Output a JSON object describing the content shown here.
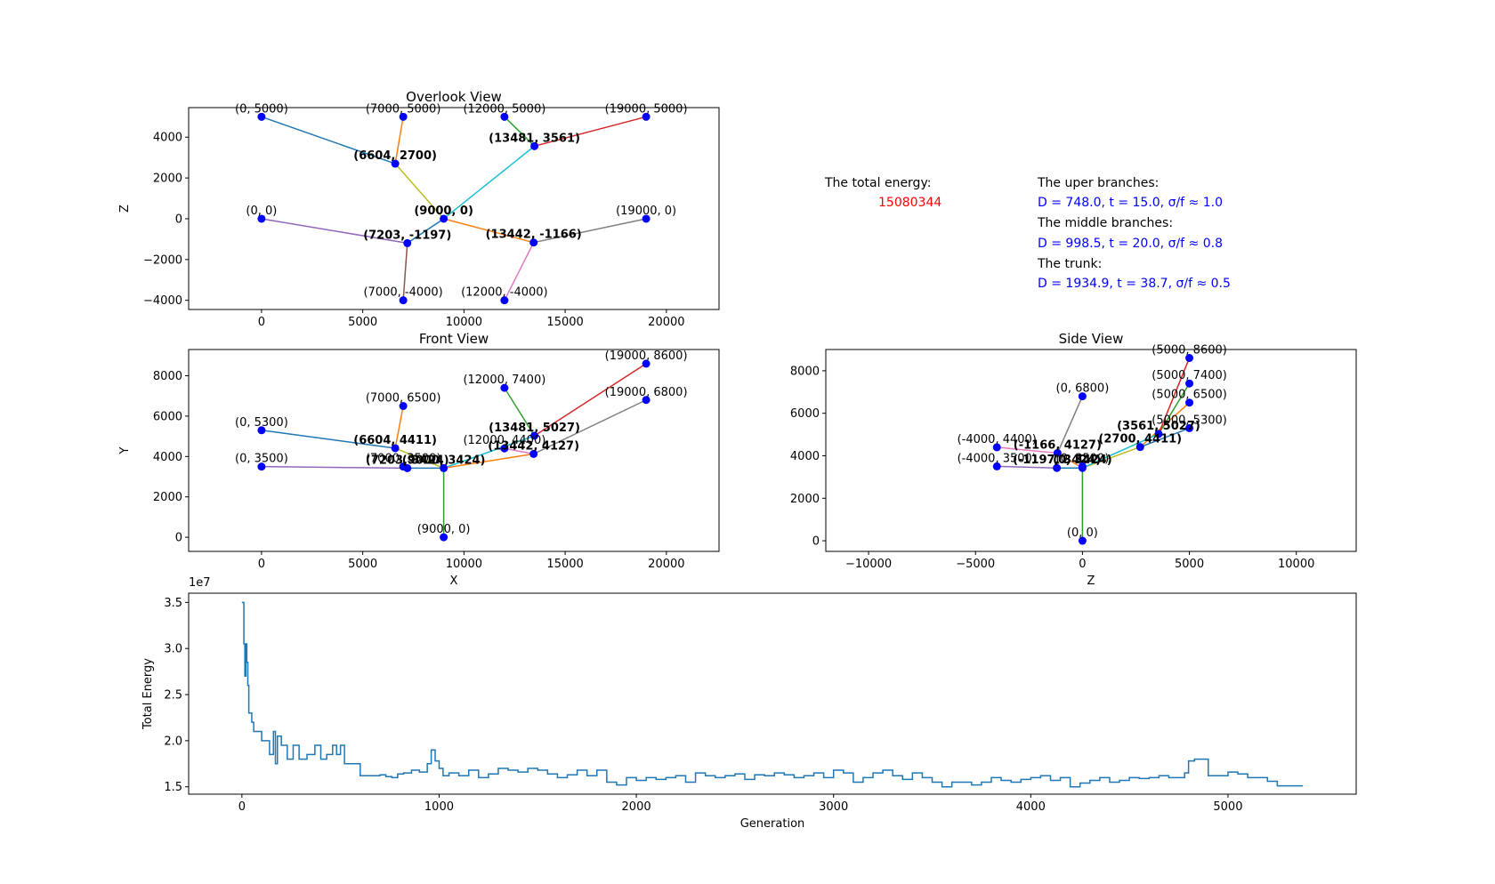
{
  "info": {
    "energy_label": "The total energy:",
    "energy_value": "15080344",
    "upper_label": "The uper branches:",
    "upper_value": "D = 748.0, t = 15.0, σ/f ≈ 1.0",
    "middle_label": "The middle branches:",
    "middle_value": "D = 998.5, t = 20.0, σ/f ≈ 0.8",
    "trunk_label": "The trunk:",
    "trunk_value": "D = 1934.9, t = 38.7, σ/f ≈ 0.5",
    "energy_color": "#ff0000",
    "value_color": "#0000ff"
  },
  "chart_data": [
    {
      "type": "line",
      "title": "Overlook View",
      "xlabel": "",
      "ylabel": "Z",
      "xlim": [
        -3600,
        22600
      ],
      "ylim": [
        -4450,
        5450
      ],
      "xticks": [
        0,
        5000,
        10000,
        15000,
        20000
      ],
      "yticks": [
        -4000,
        -2000,
        0,
        2000,
        4000
      ],
      "xtick_labels": [
        "0",
        "5000",
        "10000",
        "15000",
        "20000"
      ],
      "ytick_labels": [
        "−4000",
        "−2000",
        "0",
        "2000",
        "4000"
      ],
      "segments": [
        {
          "from": [
            0,
            5000
          ],
          "to": [
            6604,
            2700
          ],
          "color": "#1f77b4"
        },
        {
          "from": [
            7000,
            5000
          ],
          "to": [
            6604,
            2700
          ],
          "color": "#ff7f0e"
        },
        {
          "from": [
            12000,
            5000
          ],
          "to": [
            13481,
            3561
          ],
          "color": "#2ca02c"
        },
        {
          "from": [
            19000,
            5000
          ],
          "to": [
            13481,
            3561
          ],
          "color": "#d62728"
        },
        {
          "from": [
            6604,
            2700
          ],
          "to": [
            9000,
            0
          ],
          "color": "#bcbd22"
        },
        {
          "from": [
            13481,
            3561
          ],
          "to": [
            9000,
            0
          ],
          "color": "#17becf"
        },
        {
          "from": [
            0,
            0
          ],
          "to": [
            7203,
            -1197
          ],
          "color": "#9467bd"
        },
        {
          "from": [
            7000,
            -4000
          ],
          "to": [
            7203,
            -1197
          ],
          "color": "#8c564b"
        },
        {
          "from": [
            9000,
            0
          ],
          "to": [
            13442,
            -1166
          ],
          "color": "#ff7f0e"
        },
        {
          "from": [
            19000,
            0
          ],
          "to": [
            13442,
            -1166
          ],
          "color": "#7f7f7f"
        },
        {
          "from": [
            12000,
            -4000
          ],
          "to": [
            13442,
            -1166
          ],
          "color": "#e377c2"
        },
        {
          "from": [
            7203,
            -1197
          ],
          "to": [
            9000,
            0
          ],
          "color": "#1f77b4"
        }
      ],
      "points": [
        {
          "x": 0,
          "y": 5000,
          "label": "(0, 5000)",
          "bold": false
        },
        {
          "x": 7000,
          "y": 5000,
          "label": "(7000, 5000)",
          "bold": false
        },
        {
          "x": 12000,
          "y": 5000,
          "label": "(12000, 5000)",
          "bold": false
        },
        {
          "x": 19000,
          "y": 5000,
          "label": "(19000, 5000)",
          "bold": false
        },
        {
          "x": 13481,
          "y": 3561,
          "label": "(13481, 3561)",
          "bold": true
        },
        {
          "x": 6604,
          "y": 2700,
          "label": "(6604, 2700)",
          "bold": true
        },
        {
          "x": 0,
          "y": 0,
          "label": "(0, 0)",
          "bold": false
        },
        {
          "x": 9000,
          "y": 0,
          "label": "(9000, 0)",
          "bold": true
        },
        {
          "x": 19000,
          "y": 0,
          "label": "(19000, 0)",
          "bold": false
        },
        {
          "x": 7203,
          "y": -1197,
          "label": "(7203, -1197)",
          "bold": true
        },
        {
          "x": 13442,
          "y": -1166,
          "label": "(13442, -1166)",
          "bold": true
        },
        {
          "x": 7000,
          "y": -4000,
          "label": "(7000, -4000)",
          "bold": false
        },
        {
          "x": 12000,
          "y": -4000,
          "label": "(12000, -4000)",
          "bold": false
        }
      ]
    },
    {
      "type": "line",
      "title": "Front View",
      "xlabel": "X",
      "ylabel": "Y",
      "xlim": [
        -3600,
        22600
      ],
      "ylim": [
        -700,
        9300
      ],
      "xticks": [
        0,
        5000,
        10000,
        15000,
        20000
      ],
      "yticks": [
        0,
        2000,
        4000,
        6000,
        8000
      ],
      "xtick_labels": [
        "0",
        "5000",
        "10000",
        "15000",
        "20000"
      ],
      "ytick_labels": [
        "0",
        "2000",
        "4000",
        "6000",
        "8000"
      ],
      "segments": [
        {
          "from": [
            0,
            5300
          ],
          "to": [
            6604,
            4411
          ],
          "color": "#1f77b4"
        },
        {
          "from": [
            7000,
            6500
          ],
          "to": [
            6604,
            4411
          ],
          "color": "#ff7f0e"
        },
        {
          "from": [
            12000,
            7400
          ],
          "to": [
            13481,
            5027
          ],
          "color": "#2ca02c"
        },
        {
          "from": [
            19000,
            8600
          ],
          "to": [
            13481,
            5027
          ],
          "color": "#d62728"
        },
        {
          "from": [
            6604,
            4411
          ],
          "to": [
            9000,
            3424
          ],
          "color": "#bcbd22"
        },
        {
          "from": [
            13481,
            5027
          ],
          "to": [
            9000,
            3424
          ],
          "color": "#17becf"
        },
        {
          "from": [
            0,
            3500
          ],
          "to": [
            7203,
            3424
          ],
          "color": "#9467bd"
        },
        {
          "from": [
            7000,
            3500
          ],
          "to": [
            7203,
            3424
          ],
          "color": "#8c564b"
        },
        {
          "from": [
            9000,
            3424
          ],
          "to": [
            13442,
            4127
          ],
          "color": "#ff7f0e"
        },
        {
          "from": [
            19000,
            6800
          ],
          "to": [
            13442,
            4127
          ],
          "color": "#7f7f7f"
        },
        {
          "from": [
            12000,
            4400
          ],
          "to": [
            13442,
            4127
          ],
          "color": "#e377c2"
        },
        {
          "from": [
            7203,
            3424
          ],
          "to": [
            9000,
            3424
          ],
          "color": "#1f77b4"
        },
        {
          "from": [
            9000,
            3424
          ],
          "to": [
            9000,
            0
          ],
          "color": "#2ca02c"
        }
      ],
      "points": [
        {
          "x": 19000,
          "y": 8600,
          "label": "(19000, 8600)",
          "bold": false
        },
        {
          "x": 12000,
          "y": 7400,
          "label": "(12000, 7400)",
          "bold": false
        },
        {
          "x": 19000,
          "y": 6800,
          "label": "(19000, 6800)",
          "bold": false
        },
        {
          "x": 7000,
          "y": 6500,
          "label": "(7000, 6500)",
          "bold": false
        },
        {
          "x": 0,
          "y": 5300,
          "label": "(0, 5300)",
          "bold": false
        },
        {
          "x": 13481,
          "y": 5027,
          "label": "(13481, 5027)",
          "bold": true
        },
        {
          "x": 6604,
          "y": 4411,
          "label": "(6604, 4411)",
          "bold": true
        },
        {
          "x": 12000,
          "y": 4400,
          "label": "(12000, 4400)",
          "bold": false
        },
        {
          "x": 13442,
          "y": 4127,
          "label": "(13442, 4127)",
          "bold": true
        },
        {
          "x": 0,
          "y": 3500,
          "label": "(0, 3500)",
          "bold": false
        },
        {
          "x": 7000,
          "y": 3500,
          "label": "(7000, 3500)",
          "bold": false
        },
        {
          "x": 7203,
          "y": 3424,
          "label": "(7203, 3424)",
          "bold": true
        },
        {
          "x": 9000,
          "y": 3424,
          "label": "(9000, 3424)",
          "bold": true
        },
        {
          "x": 9000,
          "y": 0,
          "label": "(9000, 0)",
          "bold": false
        }
      ]
    },
    {
      "type": "line",
      "title": "Side View",
      "xlabel": "Z",
      "ylabel": "",
      "xlim": [
        -12000,
        12800
      ],
      "ylim": [
        -500,
        9000
      ],
      "xticks": [
        -10000,
        -5000,
        0,
        5000,
        10000
      ],
      "yticks": [
        0,
        2000,
        4000,
        6000,
        8000
      ],
      "xtick_labels": [
        "−10000",
        "−5000",
        "0",
        "5000",
        "10000"
      ],
      "ytick_labels": [
        "0",
        "2000",
        "4000",
        "6000",
        "8000"
      ],
      "segments": [
        {
          "from": [
            5000,
            5300
          ],
          "to": [
            2700,
            4411
          ],
          "color": "#1f77b4"
        },
        {
          "from": [
            5000,
            6500
          ],
          "to": [
            2700,
            4411
          ],
          "color": "#ff7f0e"
        },
        {
          "from": [
            5000,
            7400
          ],
          "to": [
            3561,
            5027
          ],
          "color": "#2ca02c"
        },
        {
          "from": [
            5000,
            8600
          ],
          "to": [
            3561,
            5027
          ],
          "color": "#d62728"
        },
        {
          "from": [
            2700,
            4411
          ],
          "to": [
            0,
            3424
          ],
          "color": "#bcbd22"
        },
        {
          "from": [
            3561,
            5027
          ],
          "to": [
            0,
            3424
          ],
          "color": "#17becf"
        },
        {
          "from": [
            -4000,
            3500
          ],
          "to": [
            -1197,
            3424
          ],
          "color": "#9467bd"
        },
        {
          "from": [
            -4000,
            4400
          ],
          "to": [
            -1166,
            4127
          ],
          "color": "#e377c2"
        },
        {
          "from": [
            0,
            3424
          ],
          "to": [
            -1166,
            4127
          ],
          "color": "#ff7f0e"
        },
        {
          "from": [
            0,
            6800
          ],
          "to": [
            -1166,
            4127
          ],
          "color": "#7f7f7f"
        },
        {
          "from": [
            -1197,
            3424
          ],
          "to": [
            0,
            3424
          ],
          "color": "#1f77b4"
        },
        {
          "from": [
            0,
            3424
          ],
          "to": [
            0,
            0
          ],
          "color": "#2ca02c"
        }
      ],
      "points": [
        {
          "x": 5000,
          "y": 8600,
          "label": "(5000, 8600)",
          "bold": false
        },
        {
          "x": 5000,
          "y": 7400,
          "label": "(5000, 7400)",
          "bold": false
        },
        {
          "x": 0,
          "y": 6800,
          "label": "(0, 6800)",
          "bold": false
        },
        {
          "x": 5000,
          "y": 6500,
          "label": "(5000, 6500)",
          "bold": false
        },
        {
          "x": 5000,
          "y": 5300,
          "label": "(5000, 5300)",
          "bold": false
        },
        {
          "x": 3561,
          "y": 5027,
          "label": "(3561, 5027)",
          "bold": true
        },
        {
          "x": -4000,
          "y": 4400,
          "label": "(-4000, 4400)",
          "bold": false
        },
        {
          "x": 2700,
          "y": 4411,
          "label": "(2700, 4411)",
          "bold": true
        },
        {
          "x": -1166,
          "y": 4127,
          "label": "(-1166, 4127)",
          "bold": true
        },
        {
          "x": -4000,
          "y": 3500,
          "label": "(-4000, 3500)",
          "bold": false
        },
        {
          "x": -1197,
          "y": 3424,
          "label": "(-1197, 3424)",
          "bold": true
        },
        {
          "x": 0,
          "y": 3500,
          "label": "(0, 3500)",
          "bold": false
        },
        {
          "x": 0,
          "y": 3424,
          "label": "(0, 3424)",
          "bold": true
        },
        {
          "x": 0,
          "y": 0,
          "label": "(0, 0)",
          "bold": false
        }
      ]
    },
    {
      "type": "line",
      "title": "",
      "xlabel": "Generation",
      "ylabel": "Total Energy",
      "offset_label": "1e7",
      "xlim": [
        -270,
        5650
      ],
      "ylim": [
        1.42,
        3.6
      ],
      "xticks": [
        0,
        1000,
        2000,
        3000,
        4000,
        5000
      ],
      "yticks": [
        1.5,
        2.0,
        2.5,
        3.0,
        3.5
      ],
      "xtick_labels": [
        "0",
        "1000",
        "2000",
        "3000",
        "4000",
        "5000"
      ],
      "ytick_labels": [
        "1.5",
        "2.0",
        "2.5",
        "3.0",
        "3.5"
      ],
      "line_color": "#1f77b4",
      "series": [
        {
          "x": [
            0,
            10,
            15,
            20,
            25,
            30,
            35,
            40,
            45,
            50,
            60,
            80,
            100,
            140,
            160,
            170,
            180,
            200,
            230,
            260,
            290,
            330,
            370,
            400,
            430,
            460,
            480,
            500,
            520,
            550,
            600,
            650,
            700,
            730,
            760,
            790,
            820,
            860,
            900,
            940,
            960,
            980,
            1000,
            1020,
            1050,
            1100,
            1150,
            1200,
            1250,
            1300,
            1350,
            1400,
            1450,
            1500,
            1550,
            1600,
            1650,
            1700,
            1750,
            1800,
            1850,
            1900,
            1950,
            2000,
            2050,
            2100,
            2150,
            2200,
            2250,
            2300,
            2350,
            2400,
            2450,
            2500,
            2550,
            2600,
            2650,
            2700,
            2750,
            2800,
            2850,
            2900,
            2950,
            3000,
            3050,
            3100,
            3150,
            3200,
            3250,
            3300,
            3350,
            3400,
            3450,
            3500,
            3550,
            3600,
            3650,
            3700,
            3750,
            3800,
            3850,
            3900,
            3950,
            4000,
            4050,
            4100,
            4150,
            4200,
            4250,
            4300,
            4350,
            4400,
            4450,
            4500,
            4550,
            4600,
            4650,
            4700,
            4750,
            4780,
            4800,
            4830,
            4870,
            4900,
            4950,
            5000,
            5050,
            5100,
            5150,
            5200,
            5250,
            5300,
            5380
          ],
          "y": [
            3.5,
            3.05,
            2.7,
            3.05,
            2.85,
            2.6,
            2.3,
            2.3,
            2.3,
            2.2,
            2.1,
            2.1,
            2.0,
            1.85,
            2.1,
            1.75,
            2.05,
            1.95,
            1.8,
            1.95,
            1.8,
            1.85,
            1.95,
            1.8,
            1.85,
            1.95,
            1.85,
            1.95,
            1.75,
            1.75,
            1.62,
            1.62,
            1.63,
            1.61,
            1.6,
            1.64,
            1.65,
            1.68,
            1.66,
            1.75,
            1.9,
            1.78,
            1.7,
            1.62,
            1.65,
            1.62,
            1.68,
            1.6,
            1.64,
            1.7,
            1.68,
            1.66,
            1.7,
            1.68,
            1.64,
            1.6,
            1.63,
            1.68,
            1.62,
            1.68,
            1.55,
            1.52,
            1.6,
            1.57,
            1.6,
            1.58,
            1.6,
            1.62,
            1.55,
            1.65,
            1.62,
            1.6,
            1.62,
            1.64,
            1.58,
            1.63,
            1.62,
            1.65,
            1.63,
            1.6,
            1.62,
            1.65,
            1.6,
            1.68,
            1.65,
            1.55,
            1.6,
            1.65,
            1.68,
            1.62,
            1.58,
            1.65,
            1.6,
            1.55,
            1.5,
            1.55,
            1.55,
            1.52,
            1.55,
            1.6,
            1.57,
            1.55,
            1.58,
            1.6,
            1.62,
            1.57,
            1.6,
            1.5,
            1.54,
            1.57,
            1.6,
            1.55,
            1.57,
            1.6,
            1.59,
            1.6,
            1.62,
            1.6,
            1.6,
            1.65,
            1.78,
            1.8,
            1.8,
            1.62,
            1.62,
            1.66,
            1.64,
            1.6,
            1.6,
            1.56,
            1.51,
            1.51,
            1.51
          ]
        }
      ]
    }
  ]
}
